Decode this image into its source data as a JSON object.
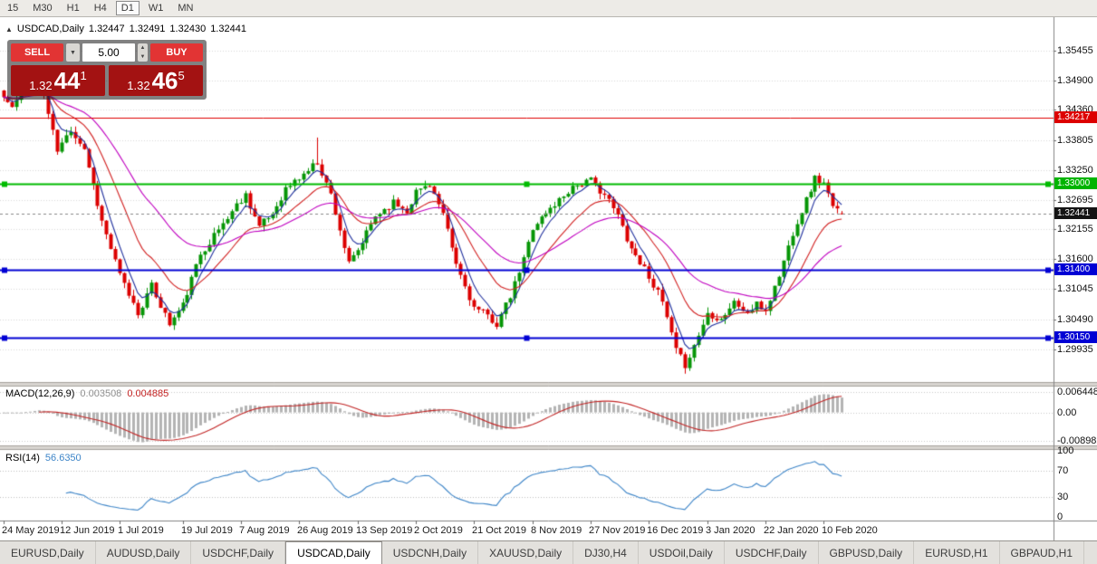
{
  "toolbar": {
    "timeframes": [
      {
        "label": "15",
        "active": false
      },
      {
        "label": "M30",
        "active": false
      },
      {
        "label": "H1",
        "active": false
      },
      {
        "label": "H4",
        "active": false
      },
      {
        "label": "D1",
        "active": true
      },
      {
        "label": "W1",
        "active": false
      },
      {
        "label": "MN",
        "active": false
      }
    ]
  },
  "chart": {
    "collapse_icon": "▲",
    "title": "USDCAD,Daily",
    "open": "1.32447",
    "high": "1.32491",
    "low": "1.32430",
    "close": "1.32441"
  },
  "one_click": {
    "sell_label": "SELL",
    "buy_label": "BUY",
    "dropdown_icon": "▼",
    "spin_up_icon": "▲",
    "spin_down_icon": "▼",
    "volume": "5.00",
    "bid": {
      "prefix": "1.32",
      "big": "44",
      "sup": "1"
    },
    "ask": {
      "prefix": "1.32",
      "big": "46",
      "sup": "5"
    }
  },
  "price_axis": {
    "ticks": [
      {
        "text": "1.35455",
        "v": 1.35455
      },
      {
        "text": "1.34900",
        "v": 1.349
      },
      {
        "text": "1.34360",
        "v": 1.3436
      },
      {
        "text": "1.33805",
        "v": 1.33805
      },
      {
        "text": "1.33250",
        "v": 1.3325
      },
      {
        "text": "1.32695",
        "v": 1.32695
      },
      {
        "text": "1.32155",
        "v": 1.32155
      },
      {
        "text": "1.31600",
        "v": 1.316
      },
      {
        "text": "1.31045",
        "v": 1.31045
      },
      {
        "text": "1.30490",
        "v": 1.3049
      },
      {
        "text": "1.29935",
        "v": 1.29935
      }
    ],
    "badges": [
      {
        "text": "1.34217",
        "price": 1.34217,
        "bg": "#dd0000"
      },
      {
        "text": "1.33000",
        "price": 1.33,
        "bg": "#00b400"
      },
      {
        "text": "1.32441",
        "price": 1.32441,
        "bg": "#141414"
      },
      {
        "text": "1.31400",
        "price": 1.314,
        "bg": "#0000d4"
      },
      {
        "text": "1.30150",
        "price": 1.3015,
        "bg": "#0000d4"
      }
    ]
  },
  "time_axis": {
    "labels": [
      {
        "text": "24 May 2019",
        "index": 0
      },
      {
        "text": "12 Jun 2019",
        "index": 13
      },
      {
        "text": "1 Jul 2019",
        "index": 26
      },
      {
        "text": "19 Jul 2019",
        "index": 40
      },
      {
        "text": "7 Aug 2019",
        "index": 53
      },
      {
        "text": "26 Aug 2019",
        "index": 66
      },
      {
        "text": "13 Sep 2019",
        "index": 79
      },
      {
        "text": "2 Oct 2019",
        "index": 92
      },
      {
        "text": "21 Oct 2019",
        "index": 105
      },
      {
        "text": "8 Nov 2019",
        "index": 118
      },
      {
        "text": "27 Nov 2019",
        "index": 131
      },
      {
        "text": "16 Dec 2019",
        "index": 144
      },
      {
        "text": "3 Jan 2020",
        "index": 157
      },
      {
        "text": "22 Jan 2020",
        "index": 170
      },
      {
        "text": "10 Feb 2020",
        "index": 183
      }
    ]
  },
  "panes": {
    "macd": {
      "label": "MACD(12,26,9)",
      "value": "0.003508",
      "signal": "0.004885",
      "axis": [
        {
          "text": "0.006448",
          "v": 0.006448
        },
        {
          "text": "0.00",
          "v": 0
        },
        {
          "text": "-0.008982",
          "v": -0.008982
        }
      ]
    },
    "rsi": {
      "label": "RSI(14)",
      "value": "56.6350",
      "axis": [
        {
          "text": "100",
          "v": 100
        },
        {
          "text": "70",
          "v": 70
        },
        {
          "text": "30",
          "v": 30
        },
        {
          "text": "0",
          "v": 0
        }
      ],
      "levels": [
        70,
        30
      ]
    }
  },
  "tabs": {
    "items": [
      {
        "label": "EURUSD,Daily",
        "active": false
      },
      {
        "label": "AUDUSD,Daily",
        "active": false
      },
      {
        "label": "USDCHF,Daily",
        "active": false
      },
      {
        "label": "USDCAD,Daily",
        "active": true
      },
      {
        "label": "USDCNH,Daily",
        "active": false
      },
      {
        "label": "XAUUSD,Daily",
        "active": false
      },
      {
        "label": "DJ30,H4",
        "active": false
      },
      {
        "label": "USDOil,Daily",
        "active": false
      },
      {
        "label": "USDCHF,Daily",
        "active": false
      },
      {
        "label": "GBPUSD,Daily",
        "active": false
      },
      {
        "label": "EURUSD,H1",
        "active": false
      },
      {
        "label": "GBPAUD,H1",
        "active": false
      }
    ]
  },
  "chart_data": {
    "type": "candlestick",
    "symbol": "USDCAD",
    "period": "Daily",
    "ohlc_current": {
      "open": 1.32447,
      "high": 1.32491,
      "low": 1.3243,
      "close": 1.32441
    },
    "candle_count": 188,
    "y_axis_range": {
      "top": 1.3599,
      "bottom": 1.2933
    },
    "close_path_anchors": [
      [
        0,
        1.346
      ],
      [
        2,
        1.344
      ],
      [
        5,
        1.348
      ],
      [
        8,
        1.3498
      ],
      [
        12,
        1.336
      ],
      [
        15,
        1.34
      ],
      [
        18,
        1.3365
      ],
      [
        22,
        1.323
      ],
      [
        26,
        1.313
      ],
      [
        30,
        1.306
      ],
      [
        33,
        1.311
      ],
      [
        37,
        1.304
      ],
      [
        40,
        1.3075
      ],
      [
        44,
        1.317
      ],
      [
        48,
        1.3215
      ],
      [
        52,
        1.326
      ],
      [
        54,
        1.328
      ],
      [
        57,
        1.322
      ],
      [
        60,
        1.3245
      ],
      [
        63,
        1.329
      ],
      [
        66,
        1.331
      ],
      [
        70,
        1.334
      ],
      [
        73,
        1.328
      ],
      [
        77,
        1.315
      ],
      [
        79,
        1.3175
      ],
      [
        83,
        1.324
      ],
      [
        87,
        1.3265
      ],
      [
        90,
        1.325
      ],
      [
        92,
        1.3285
      ],
      [
        95,
        1.33
      ],
      [
        98,
        1.324
      ],
      [
        101,
        1.315
      ],
      [
        105,
        1.307
      ],
      [
        108,
        1.3055
      ],
      [
        110,
        1.304
      ],
      [
        113,
        1.309
      ],
      [
        116,
        1.316
      ],
      [
        118,
        1.322
      ],
      [
        121,
        1.3245
      ],
      [
        124,
        1.327
      ],
      [
        127,
        1.3295
      ],
      [
        131,
        1.3305
      ],
      [
        134,
        1.328
      ],
      [
        137,
        1.324
      ],
      [
        140,
        1.318
      ],
      [
        144,
        1.313
      ],
      [
        147,
        1.308
      ],
      [
        150,
        1.299
      ],
      [
        152,
        1.2965
      ],
      [
        154,
        1.3
      ],
      [
        157,
        1.306
      ],
      [
        160,
        1.305
      ],
      [
        163,
        1.308
      ],
      [
        166,
        1.306
      ],
      [
        168,
        1.3075
      ],
      [
        170,
        1.3065
      ],
      [
        173,
        1.313
      ],
      [
        176,
        1.321
      ],
      [
        179,
        1.327
      ],
      [
        181,
        1.331
      ],
      [
        183,
        1.33
      ],
      [
        185,
        1.3255
      ],
      [
        187,
        1.32441
      ]
    ],
    "spikes": [
      {
        "index": 8,
        "high": 1.3505
      },
      {
        "index": 70,
        "high": 1.3385
      },
      {
        "index": 152,
        "low": 1.2961
      }
    ],
    "horizontal_lines": [
      {
        "price": 1.34217,
        "color": "#e00000",
        "width": 1,
        "handles": false
      },
      {
        "price": 1.33,
        "color": "#00bb00",
        "width": 2,
        "handles": true
      },
      {
        "price": 1.314,
        "color": "#0000d4",
        "width": 2,
        "handles": true
      },
      {
        "price": 1.3015,
        "color": "#0000d4",
        "width": 2,
        "handles": true
      }
    ],
    "moving_averages": [
      {
        "period": 5,
        "color": "#20309e"
      },
      {
        "period": 15,
        "color": "#d22020"
      },
      {
        "period": 34,
        "color": "#c000c0"
      }
    ],
    "macd": {
      "fast": 12,
      "slow": 26,
      "signal": 9,
      "current": 0.003508,
      "current_signal": 0.004885,
      "axis_top": 0.006448,
      "axis_bottom": -0.008982
    },
    "rsi": {
      "period": 14,
      "current": 56.635
    },
    "colors": {
      "up": "#069606",
      "down": "#dc0000",
      "macd_hist": "#b4b4b4",
      "macd_signal": "#c22525",
      "rsi_line": "#3d85c8",
      "grid": "#d9d9d9",
      "current_price_line": "#888888"
    }
  }
}
